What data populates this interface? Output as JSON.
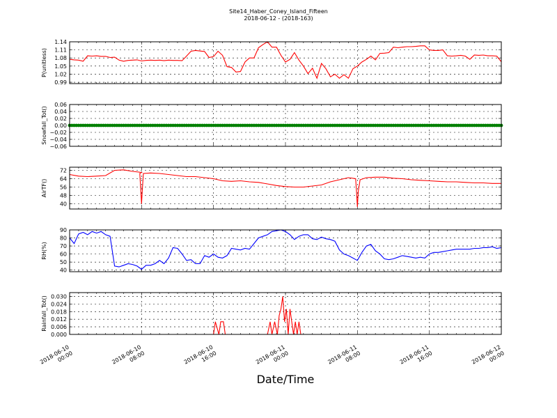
{
  "figure": {
    "title_line1": "Site14_Haber_Coney_Island_Fifteen",
    "title_line2": "2018-06-12 - (2018-163)",
    "xlabel": "Date/Time"
  },
  "colors": {
    "red": "#ff0000",
    "green": "#008000",
    "blue": "#0000ff",
    "grid": "#000000"
  },
  "chart_data": [
    {
      "type": "line",
      "ylabel": "P(unitless)",
      "ylim": [
        0.985,
        1.14
      ],
      "yticks": [
        0.99,
        1.02,
        1.05,
        1.08,
        1.11,
        1.14
      ],
      "yticklabels": [
        "0.99",
        "1.02",
        "1.05",
        "1.08",
        "1.11",
        "1.14"
      ],
      "color": "#ff0000",
      "x": [
        0,
        0.5,
        1,
        1.5,
        2,
        2.5,
        3,
        3.5,
        4,
        4.5,
        5,
        5.5,
        6,
        6.5,
        7,
        7.5,
        8,
        8.5,
        9,
        9.5,
        10,
        10.5,
        11,
        11.5,
        12,
        12.5,
        13,
        13.5,
        14,
        14.5,
        15,
        15.5,
        16,
        16.5,
        17,
        17.5,
        18,
        18.5,
        19,
        19.5,
        20,
        20.5,
        21,
        21.5,
        22,
        22.5,
        23,
        23.5,
        24,
        24.5,
        25,
        25.5,
        26,
        26.5,
        27,
        27.5,
        28,
        28.5,
        29,
        29.5,
        30,
        30.5,
        31,
        31.5,
        32,
        32.5,
        33,
        33.5,
        34,
        34.5,
        35,
        35.5,
        36,
        36.5,
        37,
        37.5,
        38,
        38.5,
        39,
        39.5,
        40,
        40.5,
        41,
        41.5,
        42,
        42.5,
        43,
        43.5,
        44,
        44.5,
        45,
        45.5,
        46,
        46.5,
        47,
        47.5,
        48
      ],
      "y": [
        1.075,
        1.073,
        1.072,
        1.068,
        1.088,
        1.087,
        1.088,
        1.086,
        1.086,
        1.082,
        1.083,
        1.072,
        1.068,
        1.071,
        1.072,
        1.073,
        1.069,
        1.071,
        1.072,
        1.071,
        1.072,
        1.07,
        1.072,
        1.071,
        1.071,
        1.07,
        1.087,
        1.105,
        1.108,
        1.106,
        1.104,
        1.082,
        1.085,
        1.105,
        1.09,
        1.048,
        1.045,
        1.028,
        1.03,
        1.065,
        1.08,
        1.08,
        1.118,
        1.13,
        1.14,
        1.12,
        1.12,
        1.09,
        1.065,
        1.075,
        1.1,
        1.072,
        1.05,
        1.022,
        1.042,
        1.005,
        1.06,
        1.04,
        1.01,
        1.02,
        1.005,
        1.018,
        1.005,
        1.04,
        1.05,
        1.065,
        1.075,
        1.087,
        1.073,
        1.097,
        1.098,
        1.1,
        1.12,
        1.118,
        1.12,
        1.122,
        1.122,
        1.123,
        1.125,
        1.125,
        1.11,
        1.108,
        1.108,
        1.11,
        1.088,
        1.087,
        1.088,
        1.09,
        1.087,
        1.075,
        1.091,
        1.09,
        1.091,
        1.088,
        1.088,
        1.087,
        1.066
      ]
    },
    {
      "type": "scatter",
      "ylabel": "Snowfall_Tot()",
      "ylim": [
        -0.06,
        0.06
      ],
      "yticks": [
        -0.06,
        -0.04,
        -0.02,
        0.0,
        0.02,
        0.04,
        0.06
      ],
      "yticklabels": [
        "−0.06",
        "−0.04",
        "−0.02",
        "0.00",
        "0.02",
        "0.04",
        "0.06"
      ],
      "color": "#008000",
      "constant_value": 0.0,
      "x_range": [
        0,
        48
      ]
    },
    {
      "type": "line",
      "ylabel": "AirTF()",
      "ylim": [
        35,
        75
      ],
      "yticks": [
        40,
        48,
        56,
        64,
        72
      ],
      "yticklabels": [
        "40",
        "48",
        "56",
        "64",
        "72"
      ],
      "color": "#ff0000",
      "x": [
        0,
        1,
        2,
        3,
        4,
        5,
        6,
        7,
        8,
        7.8,
        7.9,
        8,
        8.1,
        8.2,
        9,
        10,
        11,
        12,
        13,
        14,
        15,
        16,
        17,
        18,
        19,
        20,
        21,
        22,
        23,
        24,
        25,
        26,
        27,
        28,
        29,
        30,
        31,
        31.8,
        31.9,
        32,
        32.1,
        32.3,
        33,
        34,
        35,
        36,
        37,
        38,
        39,
        40,
        41,
        42,
        43,
        44,
        45,
        46,
        47,
        48
      ],
      "y": [
        68,
        66.5,
        66,
        66.5,
        67,
        72,
        72.5,
        71,
        70,
        69,
        55,
        40,
        55,
        69,
        69.5,
        69,
        68,
        67,
        66,
        66,
        65,
        64,
        62,
        61.5,
        62,
        61,
        60.5,
        59,
        57.5,
        56.5,
        56,
        56,
        57,
        58,
        61,
        63,
        65,
        64,
        52,
        37,
        52,
        63,
        65,
        65.5,
        65.5,
        64.5,
        64,
        63,
        62.5,
        62,
        61.5,
        61,
        61,
        60.5,
        60,
        60,
        59.5,
        59.5
      ]
    },
    {
      "type": "line",
      "ylabel": "RH(%)",
      "ylim": [
        38,
        90
      ],
      "yticks": [
        40,
        50,
        60,
        70,
        80,
        90
      ],
      "yticklabels": [
        "40",
        "50",
        "60",
        "70",
        "80",
        "90"
      ],
      "color": "#0000ff",
      "x": [
        0,
        0.5,
        1,
        1.5,
        2,
        2.5,
        3,
        3.5,
        4,
        4.5,
        5,
        5.5,
        6,
        6.5,
        7,
        7.5,
        8,
        8.5,
        9,
        9.5,
        10,
        10.5,
        11,
        11.5,
        12,
        12.5,
        13,
        13.5,
        14,
        14.5,
        15,
        15.5,
        16,
        16.5,
        17,
        17.5,
        18,
        18.5,
        19,
        19.5,
        20,
        20.5,
        21,
        21.5,
        22,
        22.5,
        23,
        23.5,
        24,
        24.5,
        25,
        25.5,
        26,
        26.5,
        27,
        27.5,
        28,
        28.5,
        29,
        29.5,
        30,
        30.5,
        31,
        31.5,
        32,
        32.5,
        33,
        33.5,
        34,
        34.5,
        35,
        35.5,
        36,
        36.5,
        37,
        37.5,
        38,
        38.5,
        39,
        39.5,
        40,
        40.5,
        41,
        41.5,
        42,
        42.5,
        43,
        43.5,
        44,
        44.5,
        45,
        45.5,
        46,
        46.5,
        47,
        47.5,
        48
      ],
      "y": [
        80,
        73,
        85,
        87,
        84,
        88,
        86,
        88,
        84,
        82,
        45,
        44,
        46,
        48,
        47,
        45,
        41,
        46,
        46,
        48,
        52,
        48,
        55,
        68,
        67,
        60,
        52,
        53,
        48,
        48,
        58,
        56,
        60,
        56,
        55,
        58,
        67,
        66,
        65,
        67,
        66,
        73,
        80,
        82,
        84,
        88,
        89,
        90,
        88,
        84,
        78,
        82,
        84,
        84,
        79,
        78,
        81,
        79,
        78,
        76,
        65,
        60,
        58,
        55,
        52,
        62,
        70,
        72,
        64,
        60,
        54,
        53,
        54,
        56,
        58,
        57,
        56,
        55,
        56,
        55,
        60,
        62,
        62,
        63,
        64,
        65,
        66,
        66,
        66,
        66,
        67,
        67,
        68,
        68,
        69,
        67,
        68
      ]
    },
    {
      "type": "line",
      "ylabel": "Rainfall_Tot()",
      "ylim": [
        0,
        0.033
      ],
      "yticks": [
        0.0,
        0.006,
        0.012,
        0.018,
        0.024,
        0.03
      ],
      "yticklabels": [
        "0.000",
        "0.006",
        "0.012",
        "0.018",
        "0.024",
        "0.030"
      ],
      "color": "#ff0000",
      "x": [
        0,
        16,
        16.2,
        16.6,
        16.8,
        17.1,
        17.3,
        22,
        22.3,
        22.5,
        22.8,
        23.1,
        23.3,
        23.5,
        23.7,
        23.9,
        24.1,
        24.3,
        24.5,
        24.7,
        24.9,
        25.1,
        25.3,
        25.5,
        25.7,
        25.9,
        26.1,
        48
      ],
      "y": [
        0,
        0,
        0.01,
        0,
        0.01,
        0.01,
        0,
        0,
        0.01,
        0,
        0.01,
        0,
        0.015,
        0.02,
        0.03,
        0.01,
        0.02,
        0,
        0.02,
        0.01,
        0,
        0.01,
        0,
        0.01,
        0,
        0,
        0,
        0
      ]
    }
  ],
  "x_axis": {
    "range_hours": [
      0,
      48
    ],
    "ticks_hours": [
      0,
      8,
      16,
      24,
      32,
      40,
      48
    ],
    "ticklabels": [
      [
        "2018-06-10",
        "00:00"
      ],
      [
        "2018-06-10",
        "08:00"
      ],
      [
        "2018-06-10",
        "16:00"
      ],
      [
        "2018-06-11",
        "00:00"
      ],
      [
        "2018-06-11",
        "08:00"
      ],
      [
        "2018-06-11",
        "16:00"
      ],
      [
        "2018-06-12",
        "00:00"
      ]
    ]
  }
}
